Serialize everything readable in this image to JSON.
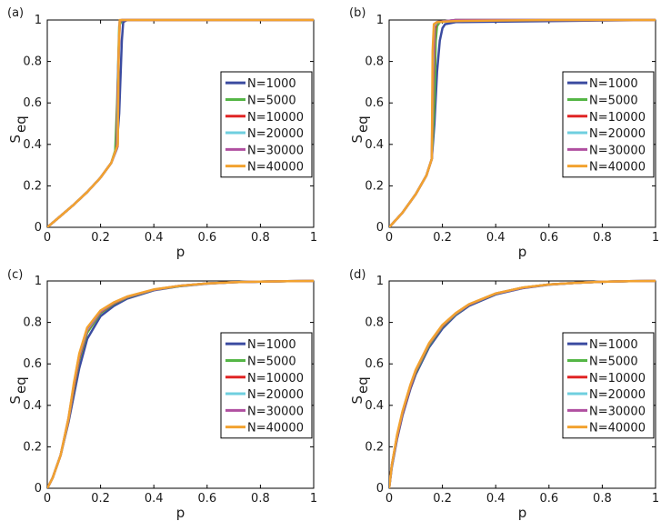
{
  "chart_data": [
    {
      "type": "line",
      "panel_label": "(a)",
      "xlabel": "p",
      "ylabel_main": "S",
      "ylabel_sub": "eq",
      "xlim": [
        0,
        1
      ],
      "ylim": [
        0,
        1
      ],
      "xticks": [
        "0",
        "0.2",
        "0.4",
        "0.6",
        "0.8",
        "1"
      ],
      "yticks": [
        "0",
        "0.2",
        "0.4",
        "0.6",
        "0.8",
        "1"
      ],
      "legend_position": "center-right",
      "series": [
        {
          "name": "N=1000",
          "color": "#3b4ba0",
          "x": [
            0,
            0.05,
            0.1,
            0.15,
            0.2,
            0.24,
            0.26,
            0.27,
            0.28,
            0.285,
            0.3,
            0.4,
            1
          ],
          "y": [
            0,
            0.055,
            0.11,
            0.17,
            0.24,
            0.31,
            0.38,
            0.55,
            0.9,
            0.99,
            1,
            1,
            1
          ]
        },
        {
          "name": "N=5000",
          "color": "#55b646",
          "x": [
            0,
            0.05,
            0.1,
            0.15,
            0.2,
            0.24,
            0.255,
            0.262,
            0.27,
            0.28,
            0.3,
            1
          ],
          "y": [
            0,
            0.055,
            0.11,
            0.17,
            0.24,
            0.31,
            0.37,
            0.6,
            0.97,
            1,
            1,
            1
          ]
        },
        {
          "name": "N=10000",
          "color": "#e02424",
          "x": [
            0,
            0.05,
            0.1,
            0.15,
            0.2,
            0.24,
            0.26,
            0.265,
            0.272,
            0.28,
            0.3,
            1
          ],
          "y": [
            0,
            0.055,
            0.11,
            0.17,
            0.24,
            0.31,
            0.38,
            0.7,
            0.99,
            1,
            1,
            1
          ]
        },
        {
          "name": "N=20000",
          "color": "#6fcfdf",
          "x": [
            0,
            0.05,
            0.1,
            0.15,
            0.2,
            0.24,
            0.262,
            0.266,
            0.272,
            0.28,
            0.3,
            1
          ],
          "y": [
            0,
            0.055,
            0.11,
            0.17,
            0.24,
            0.31,
            0.38,
            0.75,
            0.995,
            1,
            1,
            1
          ]
        },
        {
          "name": "N=30000",
          "color": "#b04fa0",
          "x": [
            0,
            0.05,
            0.1,
            0.15,
            0.2,
            0.24,
            0.264,
            0.267,
            0.272,
            0.28,
            0.3,
            1
          ],
          "y": [
            0,
            0.055,
            0.11,
            0.17,
            0.24,
            0.31,
            0.39,
            0.8,
            0.998,
            1,
            1,
            1
          ]
        },
        {
          "name": "N=40000",
          "color": "#f2a22f",
          "x": [
            0,
            0.05,
            0.1,
            0.15,
            0.2,
            0.24,
            0.265,
            0.268,
            0.272,
            0.28,
            0.3,
            1
          ],
          "y": [
            0,
            0.055,
            0.11,
            0.17,
            0.24,
            0.31,
            0.4,
            0.85,
            1,
            1,
            1,
            1
          ]
        }
      ]
    },
    {
      "type": "line",
      "panel_label": "(b)",
      "xlabel": "p",
      "ylabel_main": "S",
      "ylabel_sub": "eq",
      "xlim": [
        0,
        1
      ],
      "ylim": [
        0,
        1
      ],
      "xticks": [
        "0",
        "0.2",
        "0.4",
        "0.6",
        "0.8",
        "1"
      ],
      "yticks": [
        "0",
        "0.2",
        "0.4",
        "0.6",
        "0.8",
        "1"
      ],
      "legend_position": "center-right",
      "series": [
        {
          "name": "N=1000",
          "color": "#3b4ba0",
          "x": [
            0,
            0.05,
            0.1,
            0.14,
            0.16,
            0.17,
            0.18,
            0.19,
            0.2,
            0.21,
            0.25,
            1
          ],
          "y": [
            0,
            0.07,
            0.16,
            0.25,
            0.33,
            0.5,
            0.75,
            0.9,
            0.96,
            0.98,
            0.99,
            1
          ]
        },
        {
          "name": "N=5000",
          "color": "#55b646",
          "x": [
            0,
            0.05,
            0.1,
            0.14,
            0.16,
            0.17,
            0.175,
            0.18,
            0.19,
            0.25,
            1
          ],
          "y": [
            0,
            0.07,
            0.16,
            0.25,
            0.33,
            0.6,
            0.9,
            0.97,
            0.99,
            1,
            1
          ]
        },
        {
          "name": "N=10000",
          "color": "#e02424",
          "x": [
            0,
            0.05,
            0.1,
            0.14,
            0.16,
            0.166,
            0.172,
            0.18,
            0.25,
            1
          ],
          "y": [
            0,
            0.07,
            0.16,
            0.25,
            0.33,
            0.7,
            0.96,
            0.99,
            1,
            1
          ]
        },
        {
          "name": "N=20000",
          "color": "#6fcfdf",
          "x": [
            0,
            0.05,
            0.1,
            0.14,
            0.16,
            0.165,
            0.17,
            0.18,
            0.25,
            1
          ],
          "y": [
            0,
            0.07,
            0.16,
            0.25,
            0.33,
            0.75,
            0.97,
            0.99,
            1,
            1
          ]
        },
        {
          "name": "N=30000",
          "color": "#b04fa0",
          "x": [
            0,
            0.05,
            0.1,
            0.14,
            0.16,
            0.164,
            0.169,
            0.18,
            0.25,
            1
          ],
          "y": [
            0,
            0.07,
            0.16,
            0.25,
            0.33,
            0.8,
            0.98,
            0.99,
            1,
            1
          ]
        },
        {
          "name": "N=40000",
          "color": "#f2a22f",
          "x": [
            0,
            0.05,
            0.1,
            0.14,
            0.16,
            0.163,
            0.168,
            0.18,
            0.25,
            0.6,
            1
          ],
          "y": [
            0,
            0.07,
            0.16,
            0.25,
            0.33,
            0.85,
            0.98,
            0.99,
            0.995,
            1,
            1
          ]
        }
      ]
    },
    {
      "type": "line",
      "panel_label": "(c)",
      "xlabel": "p",
      "ylabel_main": "S",
      "ylabel_sub": "eq",
      "xlim": [
        0,
        1
      ],
      "ylim": [
        0,
        1
      ],
      "xticks": [
        "0",
        "0.2",
        "0.4",
        "0.6",
        "0.8",
        "1"
      ],
      "yticks": [
        "0",
        "0.2",
        "0.4",
        "0.6",
        "0.8",
        "1"
      ],
      "legend_position": "center-right",
      "series": [
        {
          "name": "N=1000",
          "color": "#3b4ba0",
          "x": [
            0,
            0.02,
            0.05,
            0.08,
            0.1,
            0.12,
            0.15,
            0.2,
            0.25,
            0.3,
            0.4,
            0.5,
            0.6,
            0.7,
            0.8,
            0.9,
            1
          ],
          "y": [
            0,
            0.05,
            0.16,
            0.32,
            0.45,
            0.58,
            0.72,
            0.83,
            0.88,
            0.915,
            0.955,
            0.975,
            0.987,
            0.994,
            0.997,
            0.999,
            1
          ]
        },
        {
          "name": "N=5000",
          "color": "#55b646",
          "x": [
            0,
            0.02,
            0.05,
            0.08,
            0.1,
            0.12,
            0.15,
            0.2,
            0.25,
            0.3,
            0.4,
            0.5,
            0.6,
            0.7,
            0.8,
            0.9,
            1
          ],
          "y": [
            0,
            0.05,
            0.16,
            0.33,
            0.48,
            0.62,
            0.75,
            0.845,
            0.89,
            0.92,
            0.957,
            0.976,
            0.988,
            0.994,
            0.997,
            0.999,
            1
          ]
        },
        {
          "name": "N=10000",
          "color": "#e02424",
          "x": [
            0,
            0.02,
            0.05,
            0.08,
            0.1,
            0.12,
            0.15,
            0.2,
            0.25,
            0.3,
            0.4,
            0.5,
            0.6,
            0.7,
            0.8,
            0.9,
            1
          ],
          "y": [
            0,
            0.05,
            0.16,
            0.33,
            0.49,
            0.63,
            0.76,
            0.85,
            0.893,
            0.922,
            0.958,
            0.977,
            0.988,
            0.994,
            0.997,
            0.999,
            1
          ]
        },
        {
          "name": "N=20000",
          "color": "#6fcfdf",
          "x": [
            0,
            0.02,
            0.05,
            0.08,
            0.1,
            0.12,
            0.15,
            0.2,
            0.25,
            0.3,
            0.4,
            0.5,
            0.6,
            0.7,
            0.8,
            0.9,
            1
          ],
          "y": [
            0,
            0.05,
            0.16,
            0.335,
            0.5,
            0.64,
            0.765,
            0.853,
            0.895,
            0.923,
            0.958,
            0.977,
            0.988,
            0.994,
            0.997,
            0.999,
            1
          ]
        },
        {
          "name": "N=30000",
          "color": "#b04fa0",
          "x": [
            0,
            0.02,
            0.05,
            0.08,
            0.1,
            0.12,
            0.15,
            0.2,
            0.25,
            0.3,
            0.4,
            0.5,
            0.6,
            0.7,
            0.8,
            0.9,
            1
          ],
          "y": [
            0,
            0.05,
            0.16,
            0.34,
            0.5,
            0.645,
            0.77,
            0.855,
            0.896,
            0.924,
            0.958,
            0.977,
            0.988,
            0.994,
            0.997,
            0.999,
            1
          ]
        },
        {
          "name": "N=40000",
          "color": "#f2a22f",
          "x": [
            0,
            0.02,
            0.05,
            0.08,
            0.1,
            0.12,
            0.15,
            0.2,
            0.25,
            0.3,
            0.4,
            0.5,
            0.6,
            0.7,
            0.8,
            0.9,
            1
          ],
          "y": [
            0,
            0.05,
            0.16,
            0.34,
            0.51,
            0.65,
            0.775,
            0.858,
            0.897,
            0.925,
            0.959,
            0.977,
            0.988,
            0.994,
            0.997,
            0.999,
            1
          ]
        }
      ]
    },
    {
      "type": "line",
      "panel_label": "(d)",
      "xlabel": "p",
      "ylabel_main": "S",
      "ylabel_sub": "eq",
      "xlim": [
        0,
        1
      ],
      "ylim": [
        0,
        1
      ],
      "xticks": [
        "0",
        "0.2",
        "0.4",
        "0.6",
        "0.8",
        "1"
      ],
      "yticks": [
        "0",
        "0.2",
        "0.4",
        "0.6",
        "0.8",
        "1"
      ],
      "legend_position": "center-right",
      "series": [
        {
          "name": "N=1000",
          "color": "#3b4ba0",
          "x": [
            0,
            0.01,
            0.03,
            0.05,
            0.08,
            0.1,
            0.15,
            0.2,
            0.25,
            0.3,
            0.4,
            0.5,
            0.6,
            0.7,
            0.8,
            0.9,
            1
          ],
          "y": [
            0,
            0.1,
            0.24,
            0.35,
            0.48,
            0.55,
            0.68,
            0.77,
            0.835,
            0.88,
            0.935,
            0.965,
            0.982,
            0.991,
            0.996,
            0.999,
            1
          ]
        },
        {
          "name": "N=5000",
          "color": "#55b646",
          "x": [
            0,
            0.01,
            0.03,
            0.05,
            0.08,
            0.1,
            0.15,
            0.2,
            0.25,
            0.3,
            0.4,
            0.5,
            0.6,
            0.7,
            0.8,
            0.9,
            1
          ],
          "y": [
            0,
            0.11,
            0.25,
            0.36,
            0.49,
            0.56,
            0.69,
            0.78,
            0.84,
            0.885,
            0.938,
            0.967,
            0.983,
            0.991,
            0.996,
            0.999,
            1
          ]
        },
        {
          "name": "N=10000",
          "color": "#e02424",
          "x": [
            0,
            0.01,
            0.03,
            0.05,
            0.08,
            0.1,
            0.15,
            0.2,
            0.25,
            0.3,
            0.4,
            0.5,
            0.6,
            0.7,
            0.8,
            0.9,
            1
          ],
          "y": [
            0,
            0.11,
            0.25,
            0.36,
            0.49,
            0.565,
            0.695,
            0.783,
            0.842,
            0.886,
            0.939,
            0.967,
            0.983,
            0.991,
            0.996,
            0.999,
            1
          ]
        },
        {
          "name": "N=20000",
          "color": "#6fcfdf",
          "x": [
            0,
            0.01,
            0.03,
            0.05,
            0.08,
            0.1,
            0.15,
            0.2,
            0.25,
            0.3,
            0.4,
            0.5,
            0.6,
            0.7,
            0.8,
            0.9,
            1
          ],
          "y": [
            0,
            0.11,
            0.255,
            0.365,
            0.495,
            0.568,
            0.697,
            0.785,
            0.843,
            0.887,
            0.939,
            0.967,
            0.983,
            0.991,
            0.996,
            0.999,
            1
          ]
        },
        {
          "name": "N=30000",
          "color": "#b04fa0",
          "x": [
            0,
            0.01,
            0.03,
            0.05,
            0.08,
            0.1,
            0.15,
            0.2,
            0.25,
            0.3,
            0.4,
            0.5,
            0.6,
            0.7,
            0.8,
            0.9,
            1
          ],
          "y": [
            0,
            0.11,
            0.255,
            0.367,
            0.497,
            0.57,
            0.698,
            0.786,
            0.844,
            0.887,
            0.939,
            0.967,
            0.983,
            0.991,
            0.996,
            0.999,
            1
          ]
        },
        {
          "name": "N=40000",
          "color": "#f2a22f",
          "x": [
            0,
            0.01,
            0.03,
            0.05,
            0.08,
            0.1,
            0.15,
            0.2,
            0.25,
            0.3,
            0.4,
            0.5,
            0.6,
            0.7,
            0.8,
            0.9,
            1
          ],
          "y": [
            0,
            0.11,
            0.26,
            0.37,
            0.5,
            0.572,
            0.7,
            0.788,
            0.845,
            0.888,
            0.94,
            0.968,
            0.983,
            0.991,
            0.996,
            0.999,
            1
          ]
        }
      ]
    }
  ]
}
